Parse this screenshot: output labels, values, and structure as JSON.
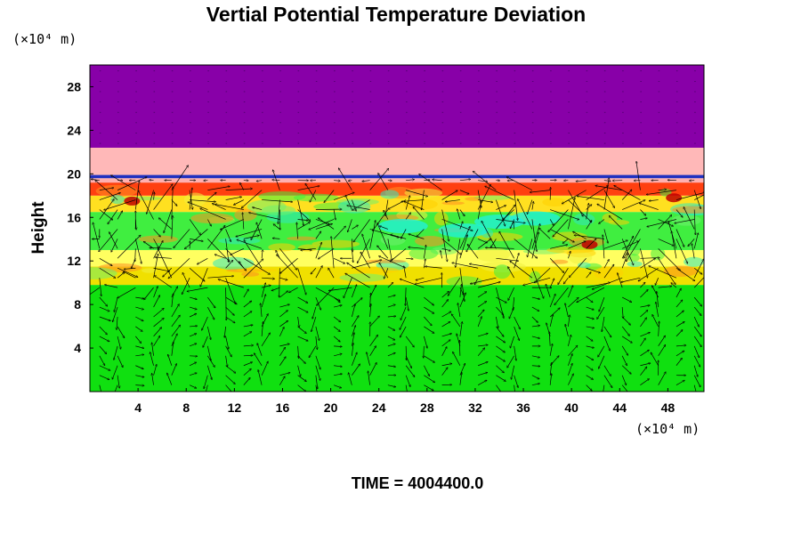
{
  "chart_data": {
    "type": "heatmap",
    "title": "Vertial Potential Temperature Deviation",
    "ylabel": "Height",
    "xlabel": "",
    "x_unit_label": "(×10⁴ m)",
    "y_unit_label": "(×10⁴ m)",
    "footer": "TIME = 4004400.0",
    "xlim": [
      0,
      51
    ],
    "ylim": [
      0,
      30
    ],
    "xticks": [
      4,
      8,
      12,
      16,
      20,
      24,
      28,
      32,
      36,
      40,
      44,
      48
    ],
    "yticks": [
      4,
      8,
      12,
      16,
      20,
      24,
      28
    ],
    "grid": false,
    "legend": "none",
    "overlay": "velocity vector field (arrows)",
    "layers": [
      {
        "y_from": 0,
        "y_to": 9.8,
        "color": "#10e010"
      },
      {
        "y_from": 9.8,
        "y_to": 11.5,
        "color": "#f0e000"
      },
      {
        "y_from": 11.5,
        "y_to": 13,
        "color": "#ffff60"
      },
      {
        "y_from": 13,
        "y_to": 16.5,
        "color": "#40ee40"
      },
      {
        "y_from": 16.5,
        "y_to": 18,
        "color": "#ffe020"
      },
      {
        "y_from": 18,
        "y_to": 19.2,
        "color": "#ff4010"
      },
      {
        "y_from": 19.2,
        "y_to": 19.6,
        "color": "#ffb0b0"
      },
      {
        "y_from": 19.6,
        "y_to": 19.9,
        "color": "#2030c0"
      },
      {
        "y_from": 19.9,
        "y_to": 22.4,
        "color": "#ffb8b8"
      },
      {
        "y_from": 22.4,
        "y_to": 30,
        "color": "#8800a8"
      }
    ],
    "colors": {
      "frame": "#000000",
      "arrow": "#000000",
      "cyan_patch": "#20f0e0",
      "dark_patch": "#c00000"
    }
  }
}
